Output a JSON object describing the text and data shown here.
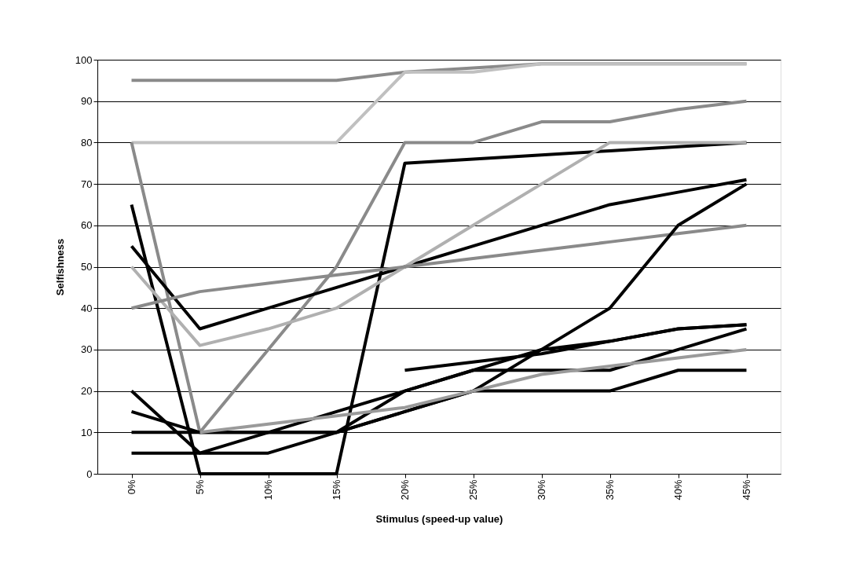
{
  "chart_data": {
    "type": "line",
    "xlabel": "Stimulus (speed-up value)",
    "ylabel": "Selfishness",
    "categories": [
      "0%",
      "5%",
      "10%",
      "15%",
      "20%",
      "25%",
      "30%",
      "35%",
      "40%",
      "45%"
    ],
    "series": [
      {
        "color": "#8a8a8a",
        "values": [
          95,
          95,
          95,
          95,
          97,
          98,
          99,
          99,
          99,
          99
        ]
      },
      {
        "color": "#c0c0c0",
        "values": [
          80,
          80,
          80,
          80,
          97,
          97,
          99,
          99,
          99,
          99
        ]
      },
      {
        "color": "#8a8a8a",
        "values": [
          80,
          10,
          30,
          50,
          80,
          80,
          85,
          85,
          88,
          90
        ]
      },
      {
        "color": "#000000",
        "values": [
          55,
          35,
          40,
          45,
          50,
          55,
          60,
          65,
          68,
          71
        ]
      },
      {
        "color": "#000000",
        "values": [
          65,
          0,
          0,
          0,
          75,
          76,
          77,
          78,
          79,
          80
        ]
      },
      {
        "color": "#b0b0b0",
        "values": [
          50,
          31,
          35,
          40,
          50,
          60,
          70,
          80,
          80,
          80
        ]
      },
      {
        "color": "#8a8a8a",
        "values": [
          40,
          44,
          46,
          48,
          50,
          52,
          54,
          56,
          58,
          60
        ]
      },
      {
        "color": "#000000",
        "values": [
          20,
          5,
          10,
          15,
          20,
          25,
          30,
          40,
          60,
          70
        ]
      },
      {
        "color": "#000000",
        "values": [
          15,
          10,
          10,
          10,
          15,
          20,
          30,
          32,
          35,
          36
        ]
      },
      {
        "color": "#000000",
        "values": [
          10,
          10,
          10,
          10,
          20,
          25,
          25,
          25,
          30,
          35
        ]
      },
      {
        "color": "#000000",
        "values": [
          5,
          5,
          5,
          10,
          15,
          20,
          20,
          20,
          25,
          25
        ]
      },
      {
        "color": "#9a9a9a",
        "values": [
          null,
          10,
          12,
          14,
          16,
          20,
          24,
          26,
          28,
          30
        ]
      },
      {
        "color": "#000000",
        "values": [
          null,
          null,
          null,
          null,
          25,
          27,
          29,
          32,
          35,
          36
        ]
      }
    ],
    "ylim": [
      0,
      100
    ],
    "yticks": [
      0,
      10,
      20,
      30,
      40,
      50,
      60,
      70,
      80,
      90,
      100
    ],
    "grid": "y",
    "legend": false,
    "marker": "none",
    "line_style": "solid"
  }
}
